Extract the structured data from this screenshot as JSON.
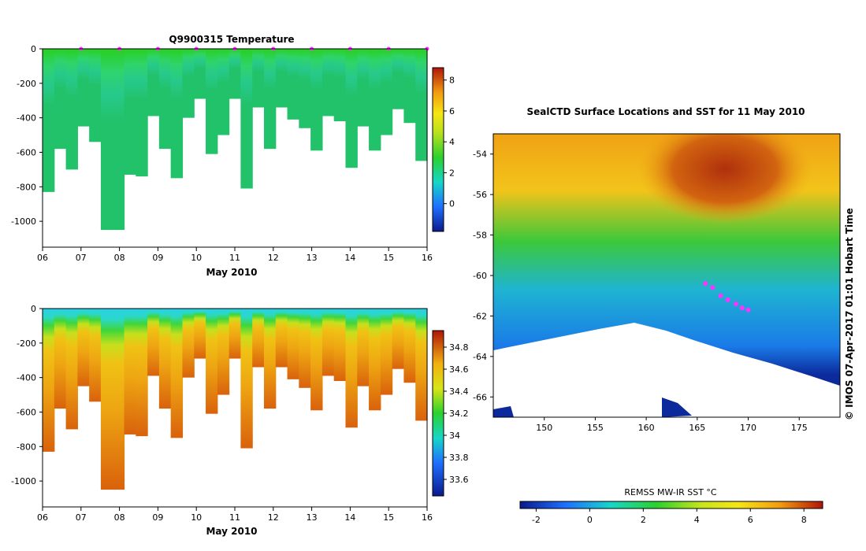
{
  "chart_data": [
    {
      "type": "heatmap",
      "title": "Q9900315  Temperature",
      "xlabel": "May 2010",
      "xticks": [
        "06",
        "07",
        "08",
        "09",
        "10",
        "11",
        "12",
        "13",
        "14",
        "15",
        "16"
      ],
      "ylim": [
        -1150,
        0
      ],
      "yticks": [
        0,
        -200,
        -400,
        -600,
        -800,
        -1000
      ],
      "colorbar": {
        "range": [
          -1.8,
          8.8
        ],
        "ticks": [
          0,
          2,
          4,
          6,
          8
        ]
      },
      "profile_depths": [
        830,
        580,
        700,
        450,
        540,
        1050,
        1050,
        730,
        740,
        390,
        580,
        750,
        400,
        290,
        610,
        500,
        290,
        810,
        340,
        580,
        340,
        410,
        460,
        590,
        390,
        420,
        690,
        450,
        590,
        500,
        350,
        430,
        650
      ],
      "surface_markers": [
        "07",
        "08",
        "09",
        "10",
        "11",
        "12",
        "13",
        "14",
        "15",
        "16"
      ]
    },
    {
      "type": "heatmap",
      "title": "",
      "xlabel": "May 2010",
      "xticks": [
        "06",
        "07",
        "08",
        "09",
        "10",
        "11",
        "12",
        "13",
        "14",
        "15",
        "16"
      ],
      "ylim": [
        -1150,
        0
      ],
      "yticks": [
        0,
        -200,
        -400,
        -600,
        -800,
        -1000
      ],
      "colorbar": {
        "range": [
          33.45,
          34.95
        ],
        "ticks": [
          33.6,
          33.8,
          34,
          34.2,
          34.4,
          34.6,
          34.8
        ]
      },
      "profile_depths": [
        830,
        580,
        700,
        450,
        540,
        1050,
        1050,
        730,
        740,
        390,
        580,
        750,
        400,
        290,
        610,
        500,
        290,
        810,
        340,
        580,
        340,
        410,
        460,
        590,
        390,
        420,
        690,
        450,
        590,
        500,
        350,
        430,
        650
      ]
    },
    {
      "type": "heatmap",
      "title": "SealCTD Surface Locations and SST for 11 May 2010",
      "xticks": [
        "150",
        "155",
        "160",
        "165",
        "170",
        "175"
      ],
      "yticks": [
        "-54",
        "-56",
        "-58",
        "-60",
        "-62",
        "-64",
        "-66"
      ],
      "xlim": [
        145,
        179
      ],
      "ylim": [
        -67,
        -53
      ],
      "colorbar": {
        "label": "REMSS MW-IR SST °C",
        "range": [
          -2.6,
          8.7
        ],
        "ticks": [
          "-2",
          "0",
          "2",
          "4",
          "6",
          "8"
        ]
      },
      "track_points": [
        [
          165.8,
          -60.4
        ],
        [
          166.5,
          -60.6
        ],
        [
          167.3,
          -61.0
        ],
        [
          168.0,
          -61.2
        ],
        [
          168.8,
          -61.4
        ],
        [
          169.4,
          -61.6
        ],
        [
          170.0,
          -61.7
        ]
      ]
    }
  ],
  "credit": "© IMOS 07-Apr-2017 01:01 Hobart Time",
  "colors": {
    "track": "#ff33ff",
    "land_ice": "#ffffff",
    "frame": "#000000"
  }
}
